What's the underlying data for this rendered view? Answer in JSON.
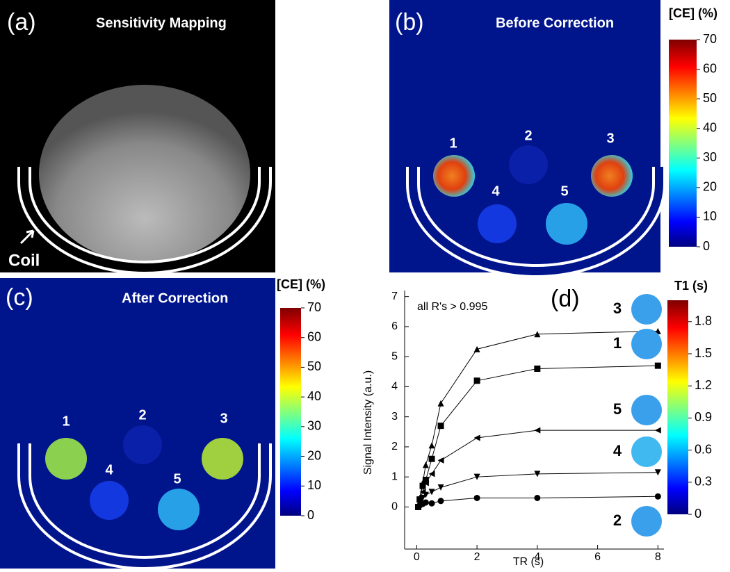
{
  "panels": [
    {
      "label": "(a)",
      "title": "Sensitivity Mapping",
      "annotation": "Coil"
    },
    {
      "label": "(b)",
      "title": "Before Correction",
      "spots": [
        "1",
        "2",
        "3",
        "4",
        "5"
      ],
      "colorbar": {
        "title": "[CE] (%)",
        "clim": [
          0,
          70
        ],
        "ticks": [
          0,
          10,
          20,
          30,
          40,
          50,
          60,
          70
        ]
      }
    },
    {
      "label": "(c)",
      "title": "After Correction",
      "spots": [
        "1",
        "2",
        "3",
        "4",
        "5"
      ],
      "colorbar": {
        "title": "[CE] (%)",
        "clim": [
          0,
          70
        ],
        "ticks": [
          0,
          10,
          20,
          30,
          40,
          50,
          60,
          70
        ]
      }
    }
  ],
  "chart_data": {
    "type": "line",
    "label": "(d)",
    "annotation": "all R's > 0.995",
    "x_label": "TR (s)",
    "y_label": "Signal Intensity (a.u.)",
    "x": [
      0.05,
      0.1,
      0.2,
      0.3,
      0.5,
      0.8,
      2,
      4,
      8
    ],
    "series": [
      {
        "name": "3",
        "marker": "triangle-up",
        "values": [
          0.05,
          0.3,
          0.8,
          1.4,
          2.05,
          3.45,
          5.25,
          5.75,
          5.85
        ]
      },
      {
        "name": "1",
        "marker": "square",
        "values": [
          0,
          0.25,
          0.7,
          0.9,
          1.6,
          2.7,
          4.2,
          4.6,
          4.7
        ]
      },
      {
        "name": "5",
        "marker": "triangle-left",
        "values": [
          0,
          0.2,
          0.5,
          0.8,
          1.1,
          1.55,
          2.3,
          2.55,
          2.55
        ]
      },
      {
        "name": "4",
        "marker": "triangle-down",
        "values": [
          0,
          0.1,
          0.3,
          0.4,
          0.5,
          0.65,
          1.0,
          1.1,
          1.15
        ]
      },
      {
        "name": "2",
        "marker": "circle",
        "values": [
          0,
          0.05,
          0.1,
          0.15,
          0.12,
          0.2,
          0.3,
          0.3,
          0.35
        ]
      }
    ],
    "xlim": [
      -0.4,
      8.2
    ],
    "ylim": [
      -1.4,
      7.2
    ],
    "xticks": [
      0,
      2,
      4,
      6,
      8
    ],
    "yticks": [
      0,
      1,
      2,
      3,
      4,
      5,
      6,
      7
    ],
    "colorbar": {
      "title": "T1 (s)",
      "clim": [
        0,
        2.0
      ],
      "ticks": [
        0,
        0.3,
        0.6,
        0.9,
        1.2,
        1.5,
        1.8
      ]
    }
  }
}
